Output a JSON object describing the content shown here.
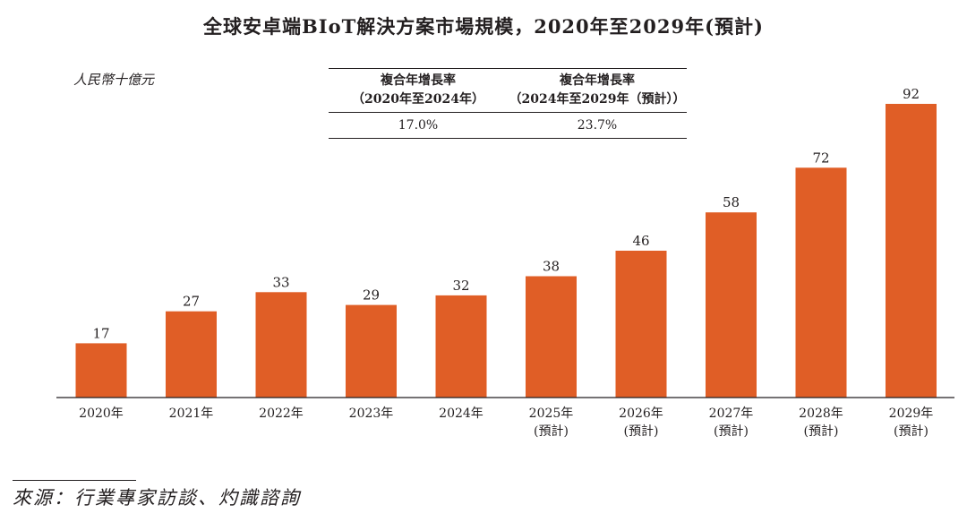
{
  "chart_data": {
    "type": "bar",
    "title": "全球安卓端BIoT解決方案市場規模，2020年至2029年(預計)",
    "ylabel": "人民幣十億元",
    "xlabel": "",
    "ylim": [
      0,
      92
    ],
    "grid": false,
    "categories": [
      "2020年",
      "2021年",
      "2022年",
      "2023年",
      "2024年",
      "2025年",
      "2026年",
      "2027年",
      "2028年",
      "2029年"
    ],
    "category_notes": [
      "",
      "",
      "",
      "",
      "",
      "(預計)",
      "(預計)",
      "(預計)",
      "(預計)",
      "(預計)"
    ],
    "series": [
      {
        "name": "市場規模",
        "values": [
          17,
          27,
          33,
          29,
          32,
          38,
          46,
          58,
          72,
          92
        ]
      }
    ],
    "bar_color": "#e05e26",
    "cagr_table": {
      "headers": [
        {
          "line1": "複合年增長率",
          "line2": "（2020年至2024年）"
        },
        {
          "line1": "複合年增長率",
          "line2": "（2024年至2029年（預計））"
        }
      ],
      "values": [
        "17.0%",
        "23.7%"
      ]
    },
    "source": "來源：行業專家訪談、灼識諮詢"
  }
}
